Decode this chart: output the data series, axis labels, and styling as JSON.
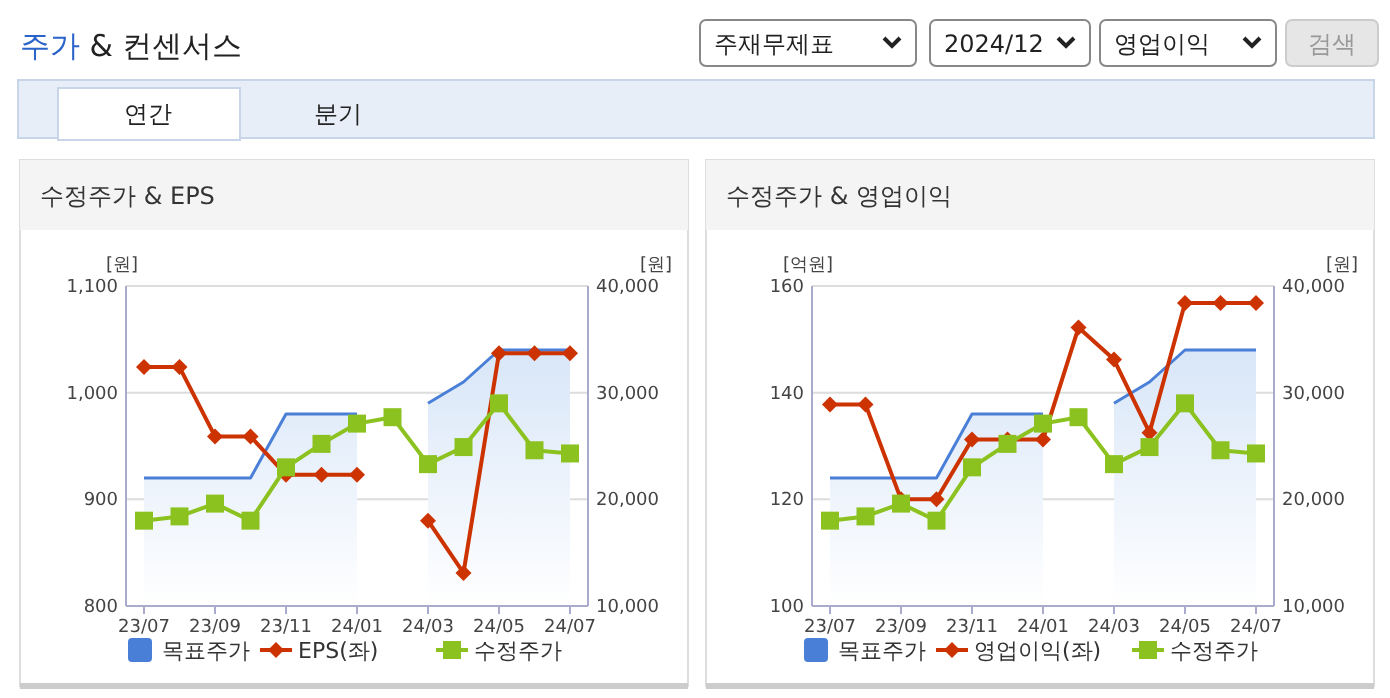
{
  "chart_data": [
    {
      "type": "other",
      "title": "주가 & 컨센서스",
      "annotations": [
        "주재무제표",
        "2024/12",
        "영업이익",
        "검색",
        "연간",
        "분기"
      ]
    },
    {
      "type": "line",
      "title": "수정주가 & EPS",
      "ylabel": "[원]",
      "y2label": "[원]",
      "categories": [
        "23/07",
        null,
        "23/09",
        null,
        "23/11",
        null,
        "24/01",
        null,
        "24/03",
        null,
        "24/05",
        null,
        "24/07"
      ],
      "ylim": [
        800,
        1100
      ],
      "yticks": [
        {
          "value": 800,
          "label": "800"
        },
        {
          "value": 900,
          "label": "900"
        },
        {
          "value": 1000,
          "label": "1,000"
        },
        {
          "value": 1100,
          "label": "1,100"
        }
      ],
      "y2lim": [
        10000,
        40000
      ],
      "y2ticks": [
        {
          "value": 10000,
          "label": "10,000"
        },
        {
          "value": 20000,
          "label": "20,000"
        },
        {
          "value": 30000,
          "label": "30,000"
        },
        {
          "value": 40000,
          "label": "40,000"
        }
      ],
      "grid": "y",
      "legend": "bottom",
      "series": [
        {
          "name": "목표주가",
          "type": "area",
          "axis": "y2",
          "color": "#4a7fd8",
          "values": [
            22000,
            22000,
            22000,
            22000,
            28000,
            28000,
            28000,
            null,
            29000,
            31000,
            34000,
            34000,
            34000
          ]
        },
        {
          "name": "EPS(좌)",
          "type": "line",
          "color": "#cc3300",
          "marker": "diamond",
          "values": [
            1024,
            1024,
            959,
            959,
            923,
            923,
            923,
            null,
            880,
            831,
            1037,
            1037,
            1037
          ]
        },
        {
          "name": "수정주가",
          "type": "line",
          "axis": "y2",
          "color": "#8cc21f",
          "marker": "square",
          "values": [
            18000,
            18400,
            19600,
            18000,
            23000,
            25200,
            27100,
            27700,
            23300,
            24900,
            29000,
            24600,
            24300
          ]
        }
      ]
    },
    {
      "type": "line",
      "title": "수정주가 & 영업이익",
      "ylabel": "[억원]",
      "y2label": "[원]",
      "categories": [
        "23/07",
        null,
        "23/09",
        null,
        "23/11",
        null,
        "24/01",
        null,
        "24/03",
        null,
        "24/05",
        null,
        "24/07"
      ],
      "ylim": [
        100,
        160
      ],
      "yticks": [
        100,
        120,
        140,
        160
      ],
      "y2lim": [
        10000,
        40000
      ],
      "y2ticks": [
        {
          "value": 10000,
          "label": "10,000"
        },
        {
          "value": 20000,
          "label": "20,000"
        },
        {
          "value": 30000,
          "label": "30,000"
        },
        {
          "value": 40000,
          "label": "40,000"
        }
      ],
      "grid": "y",
      "legend": "bottom",
      "series": [
        {
          "name": "목표주가",
          "type": "area",
          "axis": "y2",
          "color": "#4a7fd8",
          "values": [
            22000,
            22000,
            22000,
            22000,
            28000,
            28000,
            28000,
            null,
            29000,
            31000,
            34000,
            34000,
            34000
          ]
        },
        {
          "name": "영업이익(좌)",
          "type": "line",
          "color": "#cc3300",
          "marker": "diamond",
          "values": [
            137.8,
            137.8,
            120,
            120,
            131.2,
            131.2,
            131.2,
            152.2,
            146.2,
            132.5,
            156.8,
            156.8,
            156.8
          ]
        },
        {
          "name": "수정주가",
          "type": "line",
          "axis": "y2",
          "color": "#8cc21f",
          "marker": "square",
          "values": [
            18000,
            18400,
            19600,
            18000,
            23000,
            25200,
            27100,
            27700,
            23300,
            24900,
            29000,
            24600,
            24300
          ]
        }
      ]
    }
  ]
}
